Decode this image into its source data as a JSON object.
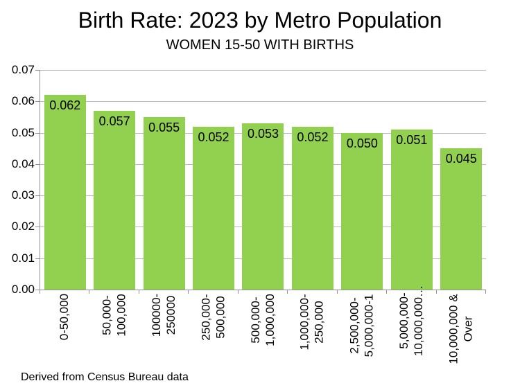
{
  "chart_data": {
    "type": "bar",
    "title": "Birth Rate: 2023 by Metro Population",
    "subtitle": "WOMEN 15-50 WITH BIRTHS",
    "footnote": "Derived from Census Bureau data",
    "categories": [
      {
        "lines": [
          "0-50,000"
        ]
      },
      {
        "lines": [
          "50,000-",
          "100,000"
        ]
      },
      {
        "lines": [
          "100000-",
          "250000"
        ]
      },
      {
        "lines": [
          "250,000-",
          "500,000"
        ]
      },
      {
        "lines": [
          "500,000-",
          "1,000,000"
        ]
      },
      {
        "lines": [
          "1,000,000-",
          "250,000"
        ]
      },
      {
        "lines": [
          "2,500,000-",
          "5,000,000-1"
        ]
      },
      {
        "lines": [
          "5,000,000-",
          "10,000,000…"
        ],
        "y_offset": -12
      },
      {
        "lines": [
          "10,000,000 &",
          "Over"
        ]
      }
    ],
    "values": [
      0.062,
      0.057,
      0.055,
      0.052,
      0.053,
      0.052,
      0.05,
      0.051,
      0.045
    ],
    "value_labels": [
      "0.062",
      "0.057",
      "0.055",
      "0.052",
      "0.053",
      "0.052",
      "0.050",
      "0.051",
      "0.045"
    ],
    "y_ticks": [
      "0.00",
      "0.01",
      "0.02",
      "0.03",
      "0.04",
      "0.05",
      "0.06",
      "0.07"
    ],
    "ylim": [
      0,
      0.07
    ],
    "y_tick_step": 0.01,
    "grid": "horizontal",
    "legend": "none",
    "bar_color": "#92D050",
    "grid_color": "#B9B9B9",
    "axis_color": "#919191",
    "text_color": "#000000",
    "background_color": "#FFFFFF"
  }
}
